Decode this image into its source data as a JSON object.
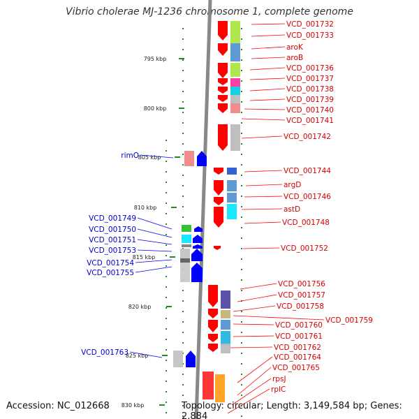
{
  "title": "Vibrio cholerae MJ-1236 chromosome 1, complete genome",
  "footer": {
    "accession": "Accession: NC_012668",
    "topology": "Topology: circular; Length: 3,149,584 bp; Genes: 2,884"
  },
  "ruler": [
    {
      "label": "795 kbp"
    },
    {
      "label": "800 kbp"
    },
    {
      "label": "805 kbp"
    },
    {
      "label": "810 kbp"
    },
    {
      "label": "815 kbp"
    },
    {
      "label": "820 kbp"
    },
    {
      "label": "825 kbp"
    },
    {
      "label": "830 kbp"
    }
  ],
  "right_labels": [
    "VCD_001732",
    "VCD_001733",
    "aroK",
    "aroB",
    "VCD_001736",
    "VCD_001737",
    "VCD_001738",
    "VCD_001739",
    "VCD_001740",
    "VCD_001741",
    "VCD_001742",
    "VCD_001744",
    "argD",
    "VCD_001746",
    "astD",
    "VCD_001748",
    "VCD_001752",
    "VCD_001756",
    "VCD_001757",
    "VCD_001758",
    "VCD_001759",
    "VCD_001760",
    "VCD_001761",
    "VCD_001762",
    "VCD_001764",
    "VCD_001765",
    "rpsJ",
    "rplC"
  ],
  "left_labels": [
    "rimO",
    "VCD_001749",
    "VCD_001750",
    "VCD_001751",
    "VCD_001753",
    "VCD_001754",
    "VCD_001755",
    "VCD_001763"
  ],
  "colors": {
    "forward_strand": "#0000ff",
    "reverse_strand": "#ff0000",
    "right_label": "#d40000",
    "left_label": "#0000cc",
    "backbone": "#888888",
    "ruler_ticks": "#228b22"
  }
}
